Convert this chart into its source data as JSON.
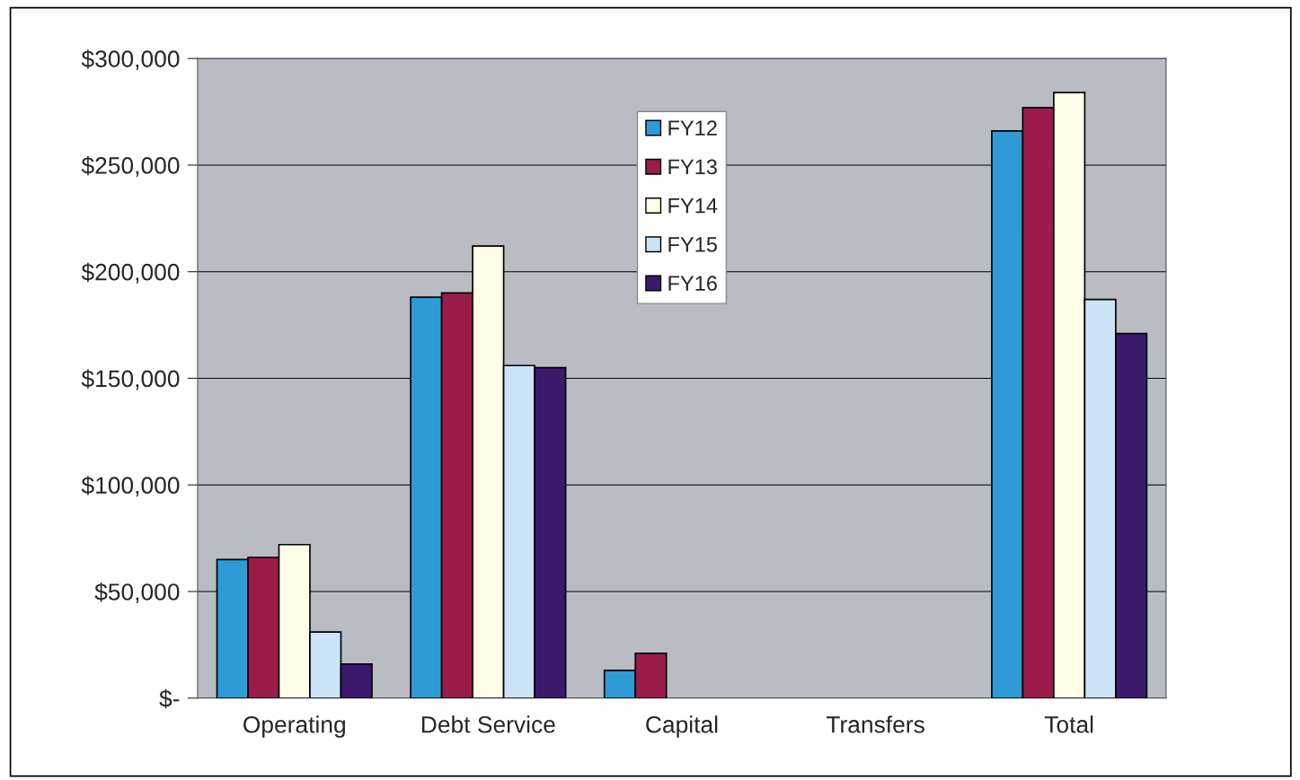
{
  "chart_data": {
    "type": "bar",
    "categories": [
      "Operating",
      "Debt Service",
      "Capital",
      "Transfers",
      "Total"
    ],
    "series": [
      {
        "name": "FY12",
        "color": "#2e9bd6",
        "values": [
          65000,
          188000,
          13000,
          null,
          266000
        ]
      },
      {
        "name": "FY13",
        "color": "#9b1b4b",
        "values": [
          66000,
          190000,
          21000,
          null,
          277000
        ]
      },
      {
        "name": "FY14",
        "color": "#fffde8",
        "values": [
          72000,
          212000,
          null,
          null,
          284000
        ]
      },
      {
        "name": "FY15",
        "color": "#cce4f7",
        "values": [
          31000,
          156000,
          null,
          null,
          187000
        ]
      },
      {
        "name": "FY16",
        "color": "#3b1a6e",
        "values": [
          16000,
          155000,
          null,
          null,
          171000
        ]
      }
    ],
    "ylim": [
      0,
      300000
    ],
    "yticks": [
      {
        "value": 0,
        "label": "$-"
      },
      {
        "value": 50000,
        "label": "$50,000"
      },
      {
        "value": 100000,
        "label": "$100,000"
      },
      {
        "value": 150000,
        "label": "$150,000"
      },
      {
        "value": 200000,
        "label": "$200,000"
      },
      {
        "value": 250000,
        "label": "$250,000"
      },
      {
        "value": 300000,
        "label": "$300,000"
      }
    ],
    "grid": "y",
    "legend": "top"
  }
}
